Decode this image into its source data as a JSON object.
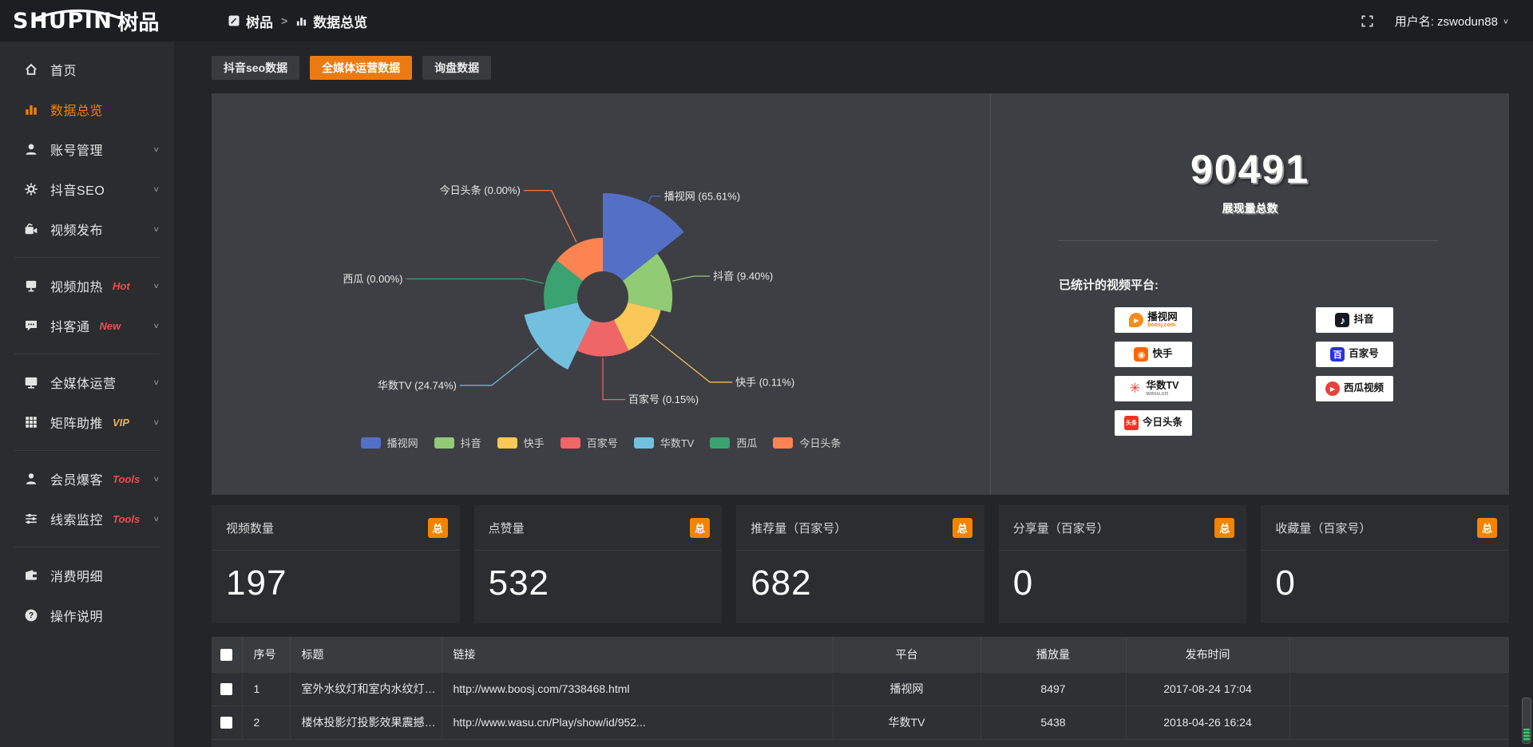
{
  "brand": {
    "name": "SHUPIN",
    "suffix": "树品"
  },
  "topbar": {
    "breadcrumb": [
      {
        "label": "树品",
        "icon": "doc-icon"
      },
      {
        "label": "数据总览",
        "icon": "bars-icon"
      }
    ],
    "username": "用户名: zswodun88"
  },
  "sidebar": {
    "items": [
      {
        "id": "home",
        "label": "首页",
        "icon": "home"
      },
      {
        "id": "data-overview",
        "label": "数据总览",
        "icon": "bars",
        "active": true
      },
      {
        "id": "account-manage",
        "label": "账号管理",
        "icon": "user",
        "expandable": true
      },
      {
        "id": "douyin-seo",
        "label": "抖音SEO",
        "icon": "gear",
        "expandable": true
      },
      {
        "id": "video-publish",
        "label": "视频发布",
        "icon": "camera",
        "expandable": true,
        "divider_after": true
      },
      {
        "id": "video-heat",
        "label": "视频加热",
        "tag": "Hot",
        "tag_color": "#f24c4c",
        "icon": "screen",
        "expandable": true
      },
      {
        "id": "douketong",
        "label": "抖客通",
        "tag": "New",
        "tag_color": "#f24c4c",
        "icon": "chat",
        "expandable": true,
        "divider_after": true
      },
      {
        "id": "media-ops",
        "label": "全媒体运营",
        "icon": "monitor",
        "expandable": true
      },
      {
        "id": "matrix-boost",
        "label": "矩阵助推",
        "tag": "VIP",
        "tag_color": "#e8b45a",
        "icon": "grid",
        "expandable": true,
        "divider_after": true
      },
      {
        "id": "member-baoke",
        "label": "会员爆客",
        "tag": "Tools",
        "tag_color": "#f24c4c",
        "icon": "person",
        "expandable": true
      },
      {
        "id": "clue-monitor",
        "label": "线索监控",
        "tag": "Tools",
        "tag_color": "#f24c4c",
        "icon": "sliders",
        "expandable": true,
        "divider_after": true
      },
      {
        "id": "consume-detail",
        "label": "消费明细",
        "icon": "wallet"
      },
      {
        "id": "help-guide",
        "label": "操作说明",
        "icon": "help"
      }
    ]
  },
  "tabs": [
    {
      "label": "抖音seo数据",
      "active": false
    },
    {
      "label": "全媒体运营数据",
      "active": true
    },
    {
      "label": "询盘数据",
      "active": false
    }
  ],
  "chart_data": {
    "type": "pie",
    "variant": "nightingale-rose",
    "items": [
      {
        "name": "播视网",
        "pct": 65.61,
        "color": "#5470c6"
      },
      {
        "name": "抖音",
        "pct": 9.4,
        "color": "#91cc75"
      },
      {
        "name": "快手",
        "pct": 0.11,
        "color": "#fac858"
      },
      {
        "name": "百家号",
        "pct": 0.15,
        "color": "#ee6666"
      },
      {
        "name": "华数TV",
        "pct": 24.74,
        "color": "#73c0de"
      },
      {
        "name": "西瓜",
        "pct": 0.0,
        "color": "#3ba272"
      },
      {
        "name": "今日头条",
        "pct": 0.0,
        "color": "#fc8452"
      }
    ],
    "legend": [
      "播视网",
      "抖音",
      "快手",
      "百家号",
      "华数TV",
      "西瓜",
      "今日头条"
    ],
    "label_format": "{name} ({pct}%)",
    "legend_position": "bottom"
  },
  "summary": {
    "total_value": "90491",
    "total_label": "展现量总数",
    "platforms_title": "已统计的视频平台:",
    "platform_columns": [
      [
        {
          "key": "boosj",
          "name": "播视网",
          "sub": "boosj.com"
        },
        {
          "key": "kuaishou",
          "name": "快手"
        },
        {
          "key": "wasu",
          "name": "华数TV",
          "sub": "wasu.cn"
        },
        {
          "key": "toutiao",
          "name": "今日头条"
        }
      ],
      [
        {
          "key": "douyin",
          "name": "抖音"
        },
        {
          "key": "baijiahao",
          "name": "百家号"
        },
        {
          "key": "xigua",
          "name": "西瓜视频"
        }
      ]
    ]
  },
  "stat_cards": [
    {
      "title": "视频数量",
      "value": "197",
      "badge": "总"
    },
    {
      "title": "点赞量",
      "value": "532",
      "badge": "总"
    },
    {
      "title": "推荐量（百家号）",
      "value": "682",
      "badge": "总"
    },
    {
      "title": "分享量（百家号）",
      "value": "0",
      "badge": "总"
    },
    {
      "title": "收藏量（百家号）",
      "value": "0",
      "badge": "总"
    }
  ],
  "table": {
    "columns": [
      "序号",
      "标题",
      "链接",
      "平台",
      "播放量",
      "发布时间"
    ],
    "rows": [
      {
        "no": "1",
        "title": "室外水纹灯和室内水纹灯的区别和简介",
        "link": "http://www.boosj.com/7338468.html",
        "platform": "播视网",
        "plays": "8497",
        "time": "2017-08-24 17:04"
      },
      {
        "no": "2",
        "title": "楼体投影灯投影效果震撼上市",
        "link": "http://www.wasu.cn/Play/show/id/952...",
        "platform": "华数TV",
        "plays": "5438",
        "time": "2018-04-26 16:24"
      }
    ]
  },
  "colors": {
    "accent": "#ec7a12",
    "badge": "#f28400",
    "link": "#ef8c33",
    "panel": "#3e3f44"
  }
}
